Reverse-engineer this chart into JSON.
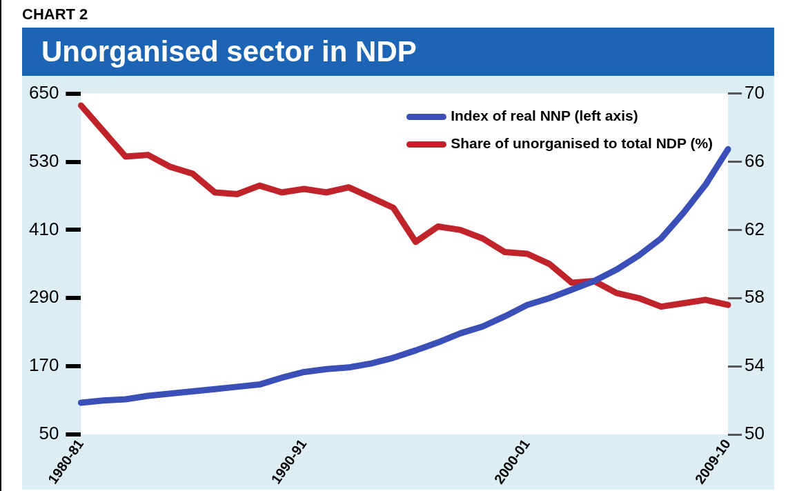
{
  "chart_data": {
    "type": "line",
    "subtitle": "CHART 2",
    "title": "Unorganised sector in NDP",
    "categories": [
      "1980-81",
      null,
      null,
      null,
      null,
      null,
      null,
      null,
      null,
      null,
      "1990-91",
      null,
      null,
      null,
      null,
      null,
      null,
      null,
      null,
      null,
      "2000-01",
      null,
      null,
      null,
      null,
      null,
      null,
      null,
      null,
      "2009-10"
    ],
    "series": [
      {
        "name": "Index of real NNP (left axis)",
        "color": "#3a4fb8",
        "values": [
          106,
          110,
          112,
          118,
          122,
          126,
          130,
          134,
          138,
          150,
          160,
          165,
          168,
          175,
          185,
          198,
          212,
          228,
          240,
          258,
          278,
          290,
          305,
          320,
          340,
          365,
          395,
          440,
          490,
          552
        ]
      },
      {
        "name": "Share of unorganised to total NDP (%)",
        "color": "#c0242a",
        "axis": "y2",
        "values": [
          69.3,
          67.8,
          66.3,
          66.4,
          65.7,
          65.3,
          64.2,
          64.1,
          64.6,
          64.2,
          64.4,
          64.2,
          64.5,
          63.9,
          63.3,
          61.3,
          62.2,
          62.0,
          61.5,
          60.7,
          60.6,
          60.0,
          58.9,
          59.0,
          58.3,
          58.0,
          57.5,
          57.7,
          57.9,
          57.6
        ]
      }
    ],
    "ylim": [
      50,
      650
    ],
    "yticks": [
      50,
      170,
      290,
      410,
      530,
      650
    ],
    "y2lim": [
      50,
      70
    ],
    "y2ticks": [
      50,
      54,
      58,
      62,
      66,
      70
    ],
    "grid": false,
    "legend": "top right",
    "marker": "none",
    "line_style": "solid"
  }
}
